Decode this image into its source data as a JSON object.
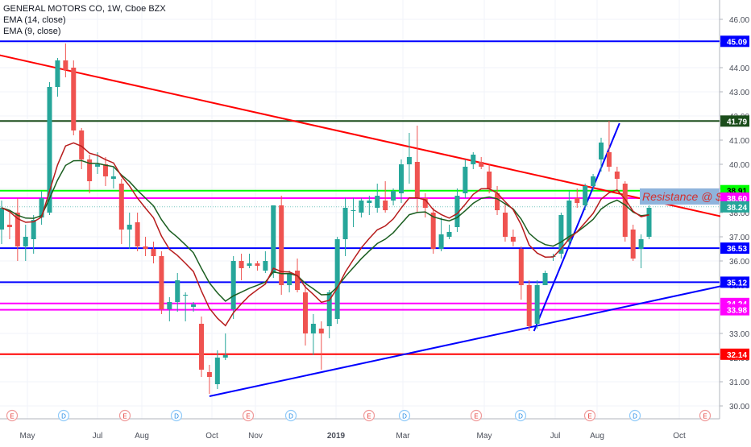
{
  "legend": {
    "title": "GENERAL MOTORS CO, 1W, Cboe BZX",
    "ema14": "EMA (14, close)",
    "ema9": "EMA (9, close)"
  },
  "annotation": "Resistance @ $",
  "colors": {
    "up": "#26a69a",
    "down": "#ef5350",
    "ema14": "#1b5e20",
    "ema9": "#b71c1c",
    "blue_line": "#0000ff",
    "red_line": "#ff0000",
    "green_line": "#00ff00",
    "magenta_line": "#ff00ff",
    "dark_green_line": "#1b4d1b"
  },
  "chart_data": {
    "type": "candlestick",
    "y_ticks": [
      "46.00",
      "45.00",
      "44.00",
      "43.00",
      "42.00",
      "41.00",
      "40.00",
      "39.00",
      "38.00",
      "37.00",
      "36.00",
      "35.00",
      "34.00",
      "33.00",
      "32.00",
      "31.00",
      "30.00"
    ],
    "x_ticks": [
      "May",
      "Jul",
      "Aug",
      "Oct",
      "Nov",
      "2019",
      "Mar",
      "May",
      "Jul",
      "Aug",
      "Oct"
    ],
    "event_markers": [
      "E",
      "D",
      "E",
      "D",
      "E",
      "D",
      "E",
      "D",
      "E",
      "D",
      "E",
      "D",
      "E"
    ],
    "candles": [
      {
        "o": 37.3,
        "h": 38.5,
        "l": 36.7,
        "c": 38.2
      },
      {
        "o": 37.5,
        "h": 38.0,
        "l": 36.9,
        "c": 37.4
      },
      {
        "o": 38.0,
        "h": 38.6,
        "l": 36.0,
        "c": 36.6
      },
      {
        "o": 36.6,
        "h": 37.5,
        "l": 36.0,
        "c": 37.0
      },
      {
        "o": 36.9,
        "h": 37.9,
        "l": 36.3,
        "c": 37.7
      },
      {
        "o": 37.8,
        "h": 38.9,
        "l": 37.5,
        "c": 38.6
      },
      {
        "o": 38.0,
        "h": 43.4,
        "l": 37.9,
        "c": 43.2
      },
      {
        "o": 43.2,
        "h": 44.4,
        "l": 42.8,
        "c": 44.3
      },
      {
        "o": 44.3,
        "h": 45.0,
        "l": 43.6,
        "c": 43.9
      },
      {
        "o": 44.0,
        "h": 44.3,
        "l": 41.2,
        "c": 41.4
      },
      {
        "o": 41.4,
        "h": 41.5,
        "l": 39.8,
        "c": 40.2
      },
      {
        "o": 40.2,
        "h": 40.4,
        "l": 38.8,
        "c": 39.3
      },
      {
        "o": 39.9,
        "h": 40.5,
        "l": 39.6,
        "c": 40.0
      },
      {
        "o": 40.0,
        "h": 40.3,
        "l": 39.1,
        "c": 39.5
      },
      {
        "o": 39.4,
        "h": 39.9,
        "l": 39.0,
        "c": 39.5
      },
      {
        "o": 39.2,
        "h": 39.4,
        "l": 36.7,
        "c": 37.3
      },
      {
        "o": 37.3,
        "h": 38.0,
        "l": 36.5,
        "c": 37.5
      },
      {
        "o": 37.6,
        "h": 38.0,
        "l": 36.4,
        "c": 36.6
      },
      {
        "o": 36.6,
        "h": 37.0,
        "l": 36.2,
        "c": 36.5
      },
      {
        "o": 36.5,
        "h": 36.8,
        "l": 35.9,
        "c": 36.2
      },
      {
        "o": 36.2,
        "h": 36.4,
        "l": 33.8,
        "c": 34.0
      },
      {
        "o": 34.0,
        "h": 34.5,
        "l": 33.5,
        "c": 34.3
      },
      {
        "o": 34.3,
        "h": 35.5,
        "l": 33.9,
        "c": 35.2
      },
      {
        "o": 34.6,
        "h": 34.7,
        "l": 33.5,
        "c": 34.6
      },
      {
        "o": 34.1,
        "h": 34.3,
        "l": 33.9,
        "c": 34.2
      },
      {
        "o": 33.4,
        "h": 33.7,
        "l": 31.2,
        "c": 31.5
      },
      {
        "o": 31.4,
        "h": 31.7,
        "l": 30.5,
        "c": 31.2
      },
      {
        "o": 30.9,
        "h": 32.3,
        "l": 30.7,
        "c": 32.0
      },
      {
        "o": 32.0,
        "h": 33.0,
        "l": 31.9,
        "c": 32.1
      },
      {
        "o": 34.0,
        "h": 36.2,
        "l": 33.6,
        "c": 36.0
      },
      {
        "o": 36.0,
        "h": 36.3,
        "l": 35.2,
        "c": 35.7
      },
      {
        "o": 35.8,
        "h": 36.3,
        "l": 35.7,
        "c": 35.9
      },
      {
        "o": 35.9,
        "h": 36.0,
        "l": 35.6,
        "c": 35.8
      },
      {
        "o": 35.6,
        "h": 36.4,
        "l": 35.5,
        "c": 36.0
      },
      {
        "o": 35.5,
        "h": 38.3,
        "l": 35.3,
        "c": 38.3
      },
      {
        "o": 38.3,
        "h": 38.7,
        "l": 34.6,
        "c": 35.0
      },
      {
        "o": 35.0,
        "h": 35.6,
        "l": 34.7,
        "c": 35.5
      },
      {
        "o": 35.6,
        "h": 36.1,
        "l": 34.7,
        "c": 34.8
      },
      {
        "o": 34.7,
        "h": 35.0,
        "l": 32.5,
        "c": 33.0
      },
      {
        "o": 33.0,
        "h": 33.8,
        "l": 32.1,
        "c": 33.4
      },
      {
        "o": 33.2,
        "h": 33.5,
        "l": 31.5,
        "c": 33.0
      },
      {
        "o": 33.3,
        "h": 34.8,
        "l": 32.8,
        "c": 34.7
      },
      {
        "o": 33.6,
        "h": 37.0,
        "l": 33.4,
        "c": 36.9
      },
      {
        "o": 36.9,
        "h": 38.6,
        "l": 36.2,
        "c": 38.2
      },
      {
        "o": 38.1,
        "h": 38.6,
        "l": 37.4,
        "c": 38.1
      },
      {
        "o": 38.0,
        "h": 38.6,
        "l": 37.8,
        "c": 38.5
      },
      {
        "o": 38.4,
        "h": 38.7,
        "l": 37.9,
        "c": 38.5
      },
      {
        "o": 38.2,
        "h": 39.2,
        "l": 38.0,
        "c": 38.7
      },
      {
        "o": 38.5,
        "h": 39.3,
        "l": 38.0,
        "c": 38.1
      },
      {
        "o": 38.5,
        "h": 39.0,
        "l": 38.3,
        "c": 38.9
      },
      {
        "o": 38.8,
        "h": 40.2,
        "l": 38.4,
        "c": 40.0
      },
      {
        "o": 40.0,
        "h": 41.3,
        "l": 39.2,
        "c": 40.3
      },
      {
        "o": 40.1,
        "h": 41.6,
        "l": 38.0,
        "c": 38.6
      },
      {
        "o": 38.6,
        "h": 38.8,
        "l": 37.8,
        "c": 38.2
      },
      {
        "o": 38.0,
        "h": 38.2,
        "l": 36.3,
        "c": 36.5
      },
      {
        "o": 36.5,
        "h": 37.8,
        "l": 36.4,
        "c": 37.1
      },
      {
        "o": 37.0,
        "h": 37.5,
        "l": 36.9,
        "c": 37.2
      },
      {
        "o": 37.4,
        "h": 39.0,
        "l": 37.2,
        "c": 38.7
      },
      {
        "o": 38.8,
        "h": 40.2,
        "l": 38.6,
        "c": 39.9
      },
      {
        "o": 40.0,
        "h": 40.5,
        "l": 39.8,
        "c": 40.4
      },
      {
        "o": 40.1,
        "h": 40.3,
        "l": 39.8,
        "c": 39.9
      },
      {
        "o": 39.7,
        "h": 40.0,
        "l": 38.8,
        "c": 39.0
      },
      {
        "o": 38.8,
        "h": 39.1,
        "l": 37.9,
        "c": 38.1
      },
      {
        "o": 38.0,
        "h": 38.4,
        "l": 36.8,
        "c": 37.0
      },
      {
        "o": 37.0,
        "h": 37.3,
        "l": 36.6,
        "c": 36.8
      },
      {
        "o": 36.5,
        "h": 36.6,
        "l": 34.4,
        "c": 35.0
      },
      {
        "o": 35.0,
        "h": 35.2,
        "l": 33.1,
        "c": 33.3
      },
      {
        "o": 33.4,
        "h": 35.2,
        "l": 33.2,
        "c": 35.0
      },
      {
        "o": 35.0,
        "h": 35.6,
        "l": 35.0,
        "c": 35.5
      },
      {
        "o": 36.2,
        "h": 36.3,
        "l": 36.0,
        "c": 36.2
      },
      {
        "o": 36.3,
        "h": 38.0,
        "l": 36.1,
        "c": 37.9
      },
      {
        "o": 36.8,
        "h": 38.9,
        "l": 36.6,
        "c": 38.5
      },
      {
        "o": 38.6,
        "h": 39.0,
        "l": 38.2,
        "c": 38.4
      },
      {
        "o": 38.3,
        "h": 39.2,
        "l": 38.1,
        "c": 39.1
      },
      {
        "o": 39.1,
        "h": 39.6,
        "l": 38.9,
        "c": 39.5
      },
      {
        "o": 40.2,
        "h": 41.1,
        "l": 39.7,
        "c": 40.9
      },
      {
        "o": 40.5,
        "h": 41.8,
        "l": 39.7,
        "c": 39.9
      },
      {
        "o": 39.7,
        "h": 39.9,
        "l": 38.9,
        "c": 39.4
      },
      {
        "o": 39.2,
        "h": 39.3,
        "l": 36.8,
        "c": 37.0
      },
      {
        "o": 37.3,
        "h": 37.5,
        "l": 36.0,
        "c": 36.1
      },
      {
        "o": 36.5,
        "h": 37.1,
        "l": 35.7,
        "c": 36.9
      },
      {
        "o": 37.0,
        "h": 38.3,
        "l": 36.9,
        "c": 38.2
      }
    ],
    "levels": [
      {
        "label": "45.09",
        "value": 45.09,
        "color": "#0000ff"
      },
      {
        "label": "41.79",
        "value": 41.79,
        "color": "#1b4d1b"
      },
      {
        "label": "38.91",
        "value": 38.91,
        "color": "#00ff00"
      },
      {
        "label": "38.60",
        "value": 38.6,
        "color": "#ff00ff"
      },
      {
        "label": "38.24",
        "value": 38.24,
        "color": "#26a69a"
      },
      {
        "label": "36.53",
        "value": 36.53,
        "color": "#0000ff"
      },
      {
        "label": "35.12",
        "value": 35.12,
        "color": "#0000ff"
      },
      {
        "label": "34.24",
        "value": 34.24,
        "color": "#ff00ff"
      },
      {
        "label": "33.98",
        "value": 33.98,
        "color": "#ff00ff"
      },
      {
        "label": "32.14",
        "value": 32.14,
        "color": "#ff0000"
      }
    ],
    "trendlines": [
      {
        "name": "descending-resistance",
        "color": "#ff0000",
        "from": {
          "bar": -1.4,
          "price": 44.6
        },
        "to": {
          "bar": 90.6,
          "price": 37.8
        }
      },
      {
        "name": "ascending-support",
        "color": "#0000ff",
        "from": {
          "bar": 26,
          "price": 30.4
        },
        "to": {
          "bar": 90.6,
          "price": 35.0
        }
      },
      {
        "name": "steep-uptrend",
        "color": "#0000ff",
        "from": {
          "bar": 66.6,
          "price": 33.1
        },
        "to": {
          "bar": 77.3,
          "price": 41.7
        }
      }
    ],
    "ylim": [
      29.5,
      46.4
    ]
  }
}
